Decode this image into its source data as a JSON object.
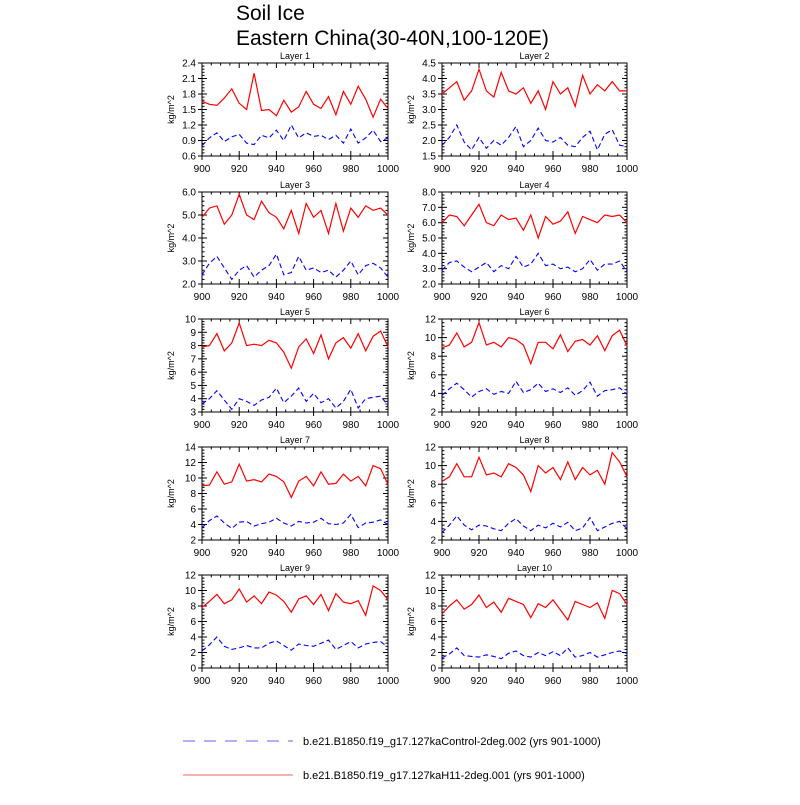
{
  "chart_data": {
    "type": "line",
    "title": "Soil Ice",
    "subtitle": "Eastern China(30-40N,100-120E)",
    "xlabel": "",
    "xlim": [
      900,
      1000
    ],
    "xticks": [
      900,
      920,
      940,
      960,
      980,
      1000
    ],
    "x": [
      900,
      904,
      908,
      912,
      916,
      920,
      924,
      928,
      932,
      936,
      940,
      944,
      948,
      952,
      956,
      960,
      964,
      968,
      972,
      976,
      980,
      984,
      988,
      992,
      996,
      1000
    ],
    "legend": {
      "placement": "bottom",
      "entries": [
        {
          "label": "b.e21.B1850.f19_g17.127kaControl-2deg.002 (yrs 901-1000)",
          "color": "#0000ff",
          "style": "dashed"
        },
        {
          "label": "b.e21.B1850.f19_g17.127kaH11-2deg.001 (yrs 901-1000)",
          "color": "#ff0000",
          "style": "solid"
        }
      ]
    },
    "panels": [
      {
        "title": "Layer 1",
        "ylabel": "kg/m^2",
        "ylim": [
          0.6,
          2.4
        ],
        "yticks": [
          "0.6",
          "0.9",
          "1.2",
          "1.5",
          "1.8",
          "2.1",
          "2.4"
        ],
        "control": [
          0.8,
          0.95,
          1.05,
          0.88,
          0.97,
          1.02,
          0.85,
          0.82,
          1.0,
          0.95,
          1.1,
          0.9,
          1.2,
          0.95,
          1.05,
          0.98,
          1.0,
          0.92,
          1.0,
          0.85,
          1.12,
          0.85,
          0.95,
          1.1,
          0.88,
          0.95
        ],
        "experiment": [
          1.66,
          1.6,
          1.58,
          1.72,
          1.9,
          1.62,
          1.5,
          2.2,
          1.48,
          1.5,
          1.38,
          1.68,
          1.45,
          1.55,
          1.85,
          1.6,
          1.52,
          1.75,
          1.4,
          1.85,
          1.6,
          1.95,
          1.7,
          1.35,
          1.7,
          1.52
        ]
      },
      {
        "title": "Layer 2",
        "ylabel": "kg/m^2",
        "ylim": [
          1.5,
          4.5
        ],
        "yticks": [
          "1.5",
          "2.0",
          "2.5",
          "3.0",
          "3.5",
          "4.0",
          "4.5"
        ],
        "control": [
          1.85,
          2.1,
          2.5,
          1.95,
          1.7,
          2.1,
          1.75,
          2.0,
          1.85,
          2.1,
          2.45,
          1.8,
          2.0,
          2.4,
          2.0,
          1.95,
          2.1,
          1.85,
          1.8,
          2.1,
          2.3,
          1.7,
          2.2,
          2.35,
          1.85,
          1.8
        ],
        "experiment": [
          3.5,
          3.7,
          3.9,
          3.3,
          3.6,
          4.3,
          3.6,
          3.4,
          4.2,
          3.6,
          3.5,
          3.7,
          3.2,
          3.6,
          3.0,
          3.9,
          3.5,
          3.7,
          3.1,
          4.1,
          3.5,
          3.8,
          3.6,
          3.9,
          3.6,
          3.6
        ]
      },
      {
        "title": "Layer 3",
        "ylabel": "kg/m^2",
        "ylim": [
          2.0,
          6.0
        ],
        "yticks": [
          "2.0",
          "3.0",
          "4.0",
          "5.0",
          "6.0"
        ],
        "control": [
          2.4,
          2.9,
          3.2,
          2.7,
          2.2,
          2.6,
          2.8,
          2.3,
          2.6,
          2.8,
          3.3,
          2.4,
          2.5,
          3.2,
          2.6,
          2.7,
          2.5,
          2.6,
          2.3,
          2.6,
          3.0,
          2.4,
          2.8,
          2.9,
          2.7,
          2.3
        ],
        "experiment": [
          4.9,
          5.3,
          5.4,
          4.6,
          5.0,
          5.9,
          5.0,
          4.8,
          5.6,
          5.1,
          4.9,
          4.4,
          5.2,
          4.2,
          5.5,
          4.9,
          5.2,
          4.2,
          5.5,
          4.3,
          5.3,
          4.9,
          5.4,
          5.2,
          5.3,
          5.0
        ]
      },
      {
        "title": "Layer 4",
        "ylabel": "kg/m^2",
        "ylim": [
          2.0,
          8.0
        ],
        "yticks": [
          "2.0",
          "3.0",
          "4.0",
          "5.0",
          "6.0",
          "7.0",
          "8.0"
        ],
        "control": [
          2.9,
          3.4,
          3.5,
          3.1,
          2.8,
          3.1,
          3.4,
          2.8,
          3.2,
          3.0,
          3.8,
          3.1,
          3.3,
          4.0,
          3.2,
          3.3,
          3.0,
          3.1,
          2.8,
          3.0,
          3.6,
          2.9,
          3.3,
          3.3,
          3.5,
          2.8
        ],
        "experiment": [
          6.0,
          6.5,
          6.4,
          5.8,
          6.5,
          7.2,
          6.0,
          5.8,
          6.5,
          6.2,
          6.3,
          5.5,
          6.5,
          5.0,
          6.4,
          5.9,
          6.1,
          6.7,
          5.3,
          6.4,
          6.2,
          6.0,
          6.5,
          6.4,
          6.5,
          6.0
        ]
      },
      {
        "title": "Layer 5",
        "ylabel": "kg/m^2",
        "ylim": [
          3,
          10
        ],
        "yticks": [
          "3",
          "4",
          "5",
          "6",
          "7",
          "8",
          "9",
          "10"
        ],
        "control": [
          3.6,
          4.0,
          4.6,
          3.9,
          3.2,
          4.0,
          3.8,
          3.5,
          3.9,
          4.1,
          4.8,
          3.7,
          4.2,
          4.8,
          3.8,
          4.4,
          3.7,
          4.0,
          3.3,
          3.8,
          4.7,
          3.3,
          4.0,
          4.1,
          4.2,
          3.5
        ],
        "experiment": [
          7.9,
          8.0,
          8.9,
          7.6,
          8.2,
          9.7,
          8.0,
          8.1,
          8.0,
          8.4,
          8.2,
          7.5,
          6.3,
          7.9,
          8.5,
          7.4,
          8.8,
          7.0,
          8.2,
          8.6,
          7.8,
          8.9,
          7.6,
          8.7,
          9.1,
          7.9
        ]
      },
      {
        "title": "Layer 6",
        "ylabel": "kg/m^2",
        "ylim": [
          2,
          12
        ],
        "yticks": [
          "2",
          "4",
          "6",
          "8",
          "10",
          "12"
        ],
        "control": [
          3.8,
          4.5,
          5.1,
          4.4,
          3.6,
          4.2,
          4.5,
          3.9,
          4.2,
          4.0,
          5.3,
          4.1,
          4.4,
          5.1,
          4.2,
          4.5,
          4.1,
          4.6,
          3.8,
          4.3,
          5.2,
          3.7,
          4.3,
          4.4,
          4.6,
          3.9
        ],
        "experiment": [
          8.9,
          9.2,
          10.5,
          9.0,
          9.5,
          11.6,
          9.2,
          9.5,
          9.0,
          10.0,
          9.8,
          9.2,
          7.2,
          9.5,
          9.5,
          8.8,
          10.3,
          8.5,
          9.6,
          9.8,
          9.2,
          10.2,
          8.6,
          10.2,
          10.8,
          9.1
        ]
      },
      {
        "title": "Layer 7",
        "ylabel": "kg/m^2",
        "ylim": [
          2,
          14
        ],
        "yticks": [
          "2",
          "4",
          "6",
          "8",
          "10",
          "12",
          "14"
        ],
        "control": [
          3.6,
          4.5,
          5.1,
          4.2,
          3.5,
          4.3,
          4.4,
          3.8,
          4.1,
          4.3,
          4.8,
          4.2,
          3.8,
          4.4,
          4.2,
          4.3,
          4.8,
          4.1,
          4.0,
          4.2,
          5.3,
          3.6,
          4.2,
          4.3,
          4.6,
          4.0
        ],
        "experiment": [
          9.0,
          9.1,
          10.8,
          9.2,
          9.5,
          11.8,
          9.6,
          9.8,
          9.5,
          10.5,
          10.2,
          9.5,
          7.5,
          9.6,
          10.2,
          9.0,
          10.8,
          9.2,
          9.3,
          10.5,
          9.6,
          10.2,
          9.0,
          11.6,
          11.2,
          9.2
        ]
      },
      {
        "title": "Layer 8",
        "ylabel": "kg/m^2",
        "ylim": [
          2,
          12
        ],
        "yticks": [
          "2",
          "4",
          "6",
          "8",
          "10",
          "12"
        ],
        "control": [
          2.8,
          3.6,
          4.6,
          3.6,
          3.1,
          3.6,
          3.5,
          3.2,
          3.0,
          3.8,
          4.3,
          3.5,
          3.0,
          3.6,
          3.3,
          3.8,
          3.4,
          3.9,
          3.0,
          3.3,
          4.4,
          3.0,
          3.4,
          3.8,
          4.0,
          3.2
        ],
        "experiment": [
          8.3,
          8.8,
          10.2,
          8.8,
          8.8,
          10.9,
          9.0,
          9.2,
          8.8,
          10.2,
          9.8,
          9.0,
          7.2,
          10.0,
          9.2,
          9.8,
          8.5,
          10.4,
          8.5,
          9.8,
          9.0,
          9.5,
          8.0,
          11.4,
          10.4,
          8.8
        ]
      },
      {
        "title": "Layer 9",
        "ylabel": "kg/m^2",
        "ylim": [
          0,
          12
        ],
        "yticks": [
          "0",
          "2",
          "4",
          "6",
          "8",
          "10",
          "12"
        ],
        "control": [
          2.2,
          3.0,
          4.0,
          2.8,
          2.4,
          2.6,
          2.9,
          2.6,
          2.6,
          3.2,
          3.5,
          2.9,
          2.3,
          3.1,
          2.9,
          2.8,
          3.2,
          3.6,
          2.4,
          2.9,
          3.4,
          2.6,
          3.1,
          3.3,
          3.4,
          2.7
        ],
        "experiment": [
          7.8,
          8.6,
          9.5,
          8.3,
          8.8,
          10.2,
          8.5,
          9.3,
          8.3,
          9.8,
          9.4,
          8.6,
          7.2,
          8.9,
          9.3,
          8.2,
          9.5,
          7.4,
          9.6,
          8.5,
          8.3,
          8.7,
          6.8,
          10.6,
          10.0,
          8.8
        ]
      },
      {
        "title": "Layer 10",
        "ylabel": "kg/m^2",
        "ylim": [
          0,
          12
        ],
        "yticks": [
          "0",
          "2",
          "4",
          "6",
          "8",
          "10",
          "12"
        ],
        "control": [
          1.3,
          1.8,
          2.6,
          1.6,
          1.5,
          1.4,
          1.7,
          1.5,
          1.2,
          1.9,
          2.2,
          1.6,
          1.4,
          2.0,
          1.6,
          2.1,
          1.6,
          2.6,
          1.4,
          1.6,
          2.0,
          1.4,
          1.7,
          2.0,
          2.2,
          1.9
        ],
        "experiment": [
          7.0,
          8.0,
          8.8,
          7.6,
          8.2,
          9.4,
          7.8,
          8.5,
          7.2,
          9.0,
          8.6,
          8.2,
          6.5,
          8.3,
          7.8,
          8.8,
          7.5,
          6.2,
          8.6,
          8.2,
          7.8,
          8.4,
          6.4,
          10.0,
          9.6,
          8.2
        ]
      }
    ]
  }
}
